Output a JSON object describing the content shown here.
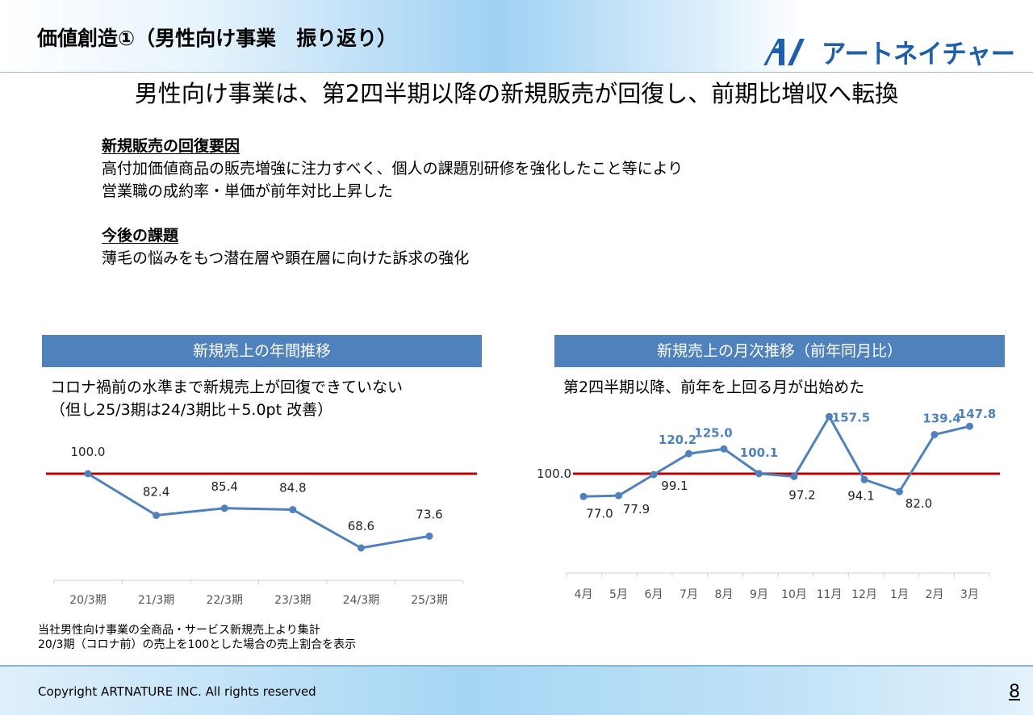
{
  "slide_title": "価値創造①（男性向け事業　振り返り）",
  "logo": {
    "text": "アートネイチャー",
    "brand_color": "#1f5ea8"
  },
  "headline": "男性向け事業は、第2四半期以降の新規販売が回復し、前期比増収へ転換",
  "recovery": {
    "heading": "新規販売の回復要因",
    "lines": [
      "高付加価値商品の販売増強に注力すべく、個人の課題別研修を強化したこと等により",
      "営業職の成約率・単価が前年対比上昇した"
    ]
  },
  "issues": {
    "heading": "今後の課題",
    "lines": [
      "薄毛の悩みをもつ潜在層や顕在層に向けた訴求の強化"
    ]
  },
  "colors": {
    "accent": "#4f81bd",
    "baseline": "#c00000"
  },
  "chart_data": [
    {
      "type": "line",
      "title": "新規売上の年間推移",
      "subtitle_lines": [
        "コロナ禍前の水準まで新規売上が回復できていない",
        "（但し25/3期は24/3期比＋5.0pt 改善）"
      ],
      "categories": [
        "20/3期",
        "21/3期",
        "22/3期",
        "23/3期",
        "24/3期",
        "25/3期"
      ],
      "values": [
        100.0,
        82.4,
        85.4,
        84.8,
        68.6,
        73.6
      ],
      "labels": [
        "100.0",
        "82.4",
        "85.4",
        "84.8",
        "68.6",
        "73.6"
      ],
      "reference_line": 100,
      "grid": false
    },
    {
      "type": "line",
      "title": "新規売上の月次推移（前年同月比）",
      "subtitle_lines": [
        "第2四半期以降、前年を上回る月が出始めた"
      ],
      "categories": [
        "4月",
        "5月",
        "6月",
        "7月",
        "8月",
        "9月",
        "10月",
        "11月",
        "12月",
        "1月",
        "2月",
        "3月"
      ],
      "values": [
        77.0,
        77.9,
        99.1,
        120.2,
        125.0,
        100.1,
        97.2,
        157.5,
        94.1,
        82.0,
        139.4,
        147.8
      ],
      "labels": [
        "77.0",
        "77.9",
        "99.1",
        "120.2",
        "125.0",
        "100.1",
        "97.2",
        "157.5",
        "94.1",
        "82.0",
        "139.4",
        "147.8"
      ],
      "highlighted": [
        false,
        false,
        false,
        true,
        true,
        true,
        false,
        true,
        false,
        false,
        true,
        true
      ],
      "reference_line": 100,
      "reference_label": "100.0",
      "grid": false
    }
  ],
  "footnotes": [
    "当社男性向け事業の全商品・サービス新規売上より集計",
    "20/3期（コロナ前）の売上を100とした場合の売上割合を表示"
  ],
  "copyright": "Copyright ARTNATURE INC. All rights reserved",
  "page_number": "8"
}
